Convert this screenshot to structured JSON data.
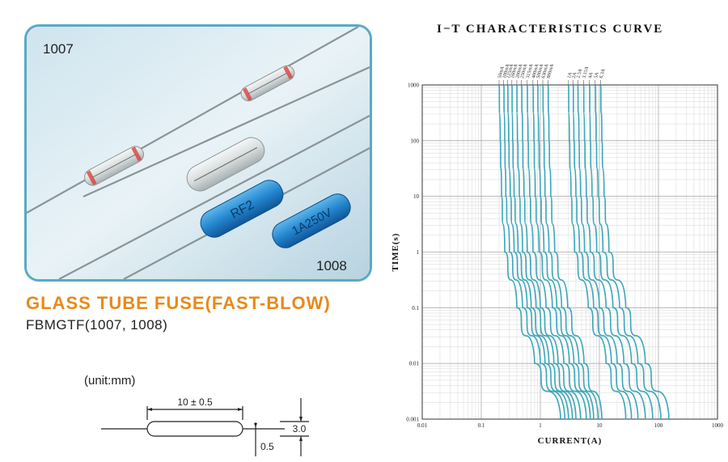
{
  "photo": {
    "label_1007": "1007",
    "label_1008": "1008",
    "print_rf2": "RF2",
    "print_rating": "1A250V"
  },
  "product": {
    "title": "GLASS TUBE FUSE(FAST-BLOW)",
    "model": "FBMGTF(1007, 1008)"
  },
  "drawing": {
    "unit": "(unit:mm)",
    "length": "10 ± 0.5",
    "diameter": "3.0",
    "lead": "0.5"
  },
  "colors": {
    "accent": "#e8891b",
    "frame": "#5aa9c5",
    "curve": "#3aa6b9"
  },
  "chart_data": {
    "type": "line",
    "title": "I−T CHARACTERISTICS CURVE",
    "xlabel": "CURRENT(A)",
    "ylabel": "TIME(s)",
    "x_scale": "log",
    "y_scale": "log",
    "xlim": [
      0.01,
      1000
    ],
    "ylim": [
      0.001,
      1000
    ],
    "x_ticks": [
      "0.01",
      "0.1",
      "1",
      "10",
      "100",
      "1000"
    ],
    "y_ticks": [
      "1000",
      "100",
      "10",
      "1",
      "0.1",
      "0.01",
      "0.001"
    ],
    "grid": true,
    "series": [
      {
        "name": "50mA",
        "points": [
          [
            0.2,
            1000
          ],
          [
            0.21,
            100
          ],
          [
            0.22,
            10
          ],
          [
            0.25,
            1
          ],
          [
            0.4,
            0.1
          ],
          [
            0.8,
            0.01
          ],
          [
            2.2,
            0.001
          ]
        ]
      },
      {
        "name": "100mA",
        "points": [
          [
            0.24,
            1000
          ],
          [
            0.25,
            100
          ],
          [
            0.26,
            10
          ],
          [
            0.3,
            1
          ],
          [
            0.5,
            0.1
          ],
          [
            1.0,
            0.01
          ],
          [
            2.6,
            0.001
          ]
        ]
      },
      {
        "name": "125mA",
        "points": [
          [
            0.28,
            1000
          ],
          [
            0.29,
            100
          ],
          [
            0.31,
            10
          ],
          [
            0.36,
            1
          ],
          [
            0.6,
            0.1
          ],
          [
            1.2,
            0.01
          ],
          [
            3.0,
            0.001
          ]
        ]
      },
      {
        "name": "160mA",
        "points": [
          [
            0.33,
            1000
          ],
          [
            0.34,
            100
          ],
          [
            0.36,
            10
          ],
          [
            0.42,
            1
          ],
          [
            0.7,
            0.1
          ],
          [
            1.4,
            0.01
          ],
          [
            3.5,
            0.001
          ]
        ]
      },
      {
        "name": "200mA",
        "points": [
          [
            0.4,
            1000
          ],
          [
            0.41,
            100
          ],
          [
            0.44,
            10
          ],
          [
            0.5,
            1
          ],
          [
            0.85,
            0.1
          ],
          [
            1.7,
            0.01
          ],
          [
            4.0,
            0.001
          ]
        ]
      },
      {
        "name": "250mA",
        "points": [
          [
            0.48,
            1000
          ],
          [
            0.5,
            100
          ],
          [
            0.53,
            10
          ],
          [
            0.6,
            1
          ],
          [
            1.0,
            0.1
          ],
          [
            2.0,
            0.01
          ],
          [
            4.8,
            0.001
          ]
        ]
      },
      {
        "name": "315mA",
        "points": [
          [
            0.6,
            1000
          ],
          [
            0.62,
            100
          ],
          [
            0.66,
            10
          ],
          [
            0.75,
            1
          ],
          [
            1.25,
            0.1
          ],
          [
            2.5,
            0.01
          ],
          [
            6.0,
            0.001
          ]
        ]
      },
      {
        "name": "400mA",
        "points": [
          [
            0.75,
            1000
          ],
          [
            0.78,
            100
          ],
          [
            0.82,
            10
          ],
          [
            0.95,
            1
          ],
          [
            1.6,
            0.1
          ],
          [
            3.1,
            0.01
          ],
          [
            7.0,
            0.001
          ]
        ]
      },
      {
        "name": "500mA",
        "points": [
          [
            0.9,
            1000
          ],
          [
            0.94,
            100
          ],
          [
            1.0,
            10
          ],
          [
            1.15,
            1
          ],
          [
            1.9,
            0.1
          ],
          [
            3.7,
            0.01
          ],
          [
            8.0,
            0.001
          ]
        ]
      },
      {
        "name": "630mA",
        "points": [
          [
            1.1,
            1000
          ],
          [
            1.15,
            100
          ],
          [
            1.2,
            10
          ],
          [
            1.4,
            1
          ],
          [
            2.3,
            0.1
          ],
          [
            4.5,
            0.01
          ],
          [
            9.5,
            0.001
          ]
        ]
      },
      {
        "name": "800mA",
        "points": [
          [
            1.35,
            1000
          ],
          [
            1.4,
            100
          ],
          [
            1.5,
            10
          ],
          [
            1.75,
            1
          ],
          [
            2.9,
            0.1
          ],
          [
            5.5,
            0.01
          ],
          [
            11,
            0.001
          ]
        ]
      },
      {
        "name": "1A",
        "points": [
          [
            3.0,
            1000
          ],
          [
            3.1,
            100
          ],
          [
            3.3,
            10
          ],
          [
            3.8,
            1
          ],
          [
            6.5,
            0.1
          ],
          [
            13,
            0.01
          ],
          [
            28,
            0.001
          ]
        ]
      },
      {
        "name": "2A",
        "points": [
          [
            3.6,
            1000
          ],
          [
            3.7,
            100
          ],
          [
            4.0,
            10
          ],
          [
            4.6,
            1
          ],
          [
            8.0,
            0.1
          ],
          [
            16,
            0.01
          ],
          [
            35,
            0.001
          ]
        ]
      },
      {
        "name": "2.5A",
        "points": [
          [
            4.3,
            1000
          ],
          [
            4.5,
            100
          ],
          [
            4.8,
            10
          ],
          [
            5.6,
            1
          ],
          [
            10,
            0.1
          ],
          [
            20,
            0.01
          ],
          [
            45,
            0.001
          ]
        ]
      },
      {
        "name": "3.15A",
        "points": [
          [
            5.4,
            1000
          ],
          [
            5.6,
            100
          ],
          [
            6.0,
            10
          ],
          [
            7.0,
            1
          ],
          [
            13,
            0.1
          ],
          [
            26,
            0.01
          ],
          [
            60,
            0.001
          ]
        ]
      },
      {
        "name": "4A",
        "points": [
          [
            6.8,
            1000
          ],
          [
            7.0,
            100
          ],
          [
            7.5,
            10
          ],
          [
            9.0,
            1
          ],
          [
            17,
            0.1
          ],
          [
            35,
            0.01
          ],
          [
            80,
            0.001
          ]
        ]
      },
      {
        "name": "5A",
        "points": [
          [
            8.5,
            1000
          ],
          [
            8.8,
            100
          ],
          [
            9.5,
            10
          ],
          [
            11.5,
            1
          ],
          [
            22,
            0.1
          ],
          [
            45,
            0.01
          ],
          [
            110,
            0.001
          ]
        ]
      },
      {
        "name": "6.3A",
        "points": [
          [
            10.5,
            1000
          ],
          [
            11,
            100
          ],
          [
            12,
            10
          ],
          [
            14.5,
            1
          ],
          [
            28,
            0.1
          ],
          [
            60,
            0.01
          ],
          [
            150,
            0.001
          ]
        ]
      }
    ]
  }
}
